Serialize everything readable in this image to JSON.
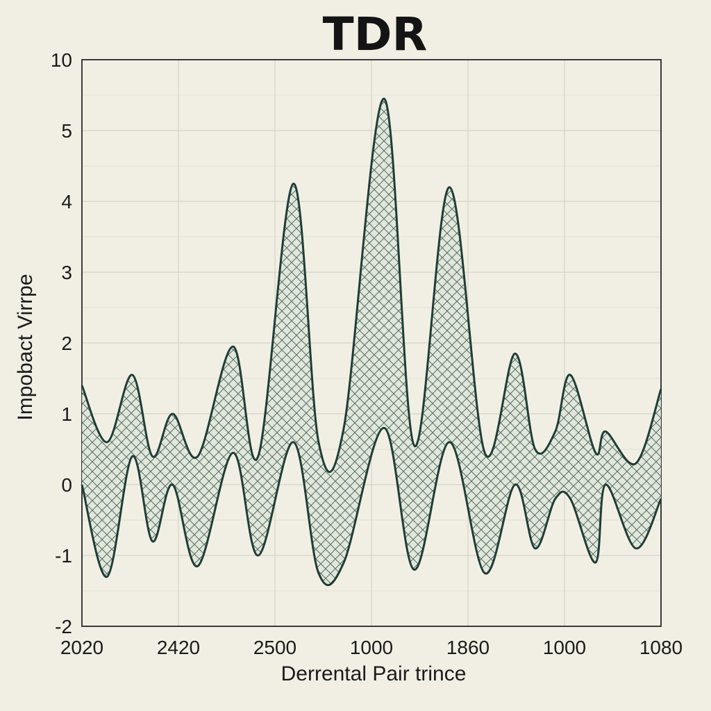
{
  "chart_data": {
    "type": "area",
    "title": "TDR",
    "xlabel": "Derrental Pair trince",
    "ylabel": "Impobact Virrpe",
    "y_ticks": [
      "10",
      "5",
      "4",
      "3",
      "2",
      "1",
      "0",
      "-1",
      "-2"
    ],
    "x_ticks": [
      "2020",
      "2420",
      "2500",
      "1000",
      "1860",
      "1000",
      "1080"
    ],
    "grid": true,
    "legend": "none",
    "colors": {
      "stroke": "#1f3d36",
      "fill": "#dfe5d9",
      "hatch": "#2c4a43",
      "grid": "#d6d3c6",
      "frame": "#3a3a3a"
    },
    "series": [
      {
        "upper": [
          [
            0.0,
            1.4
          ],
          [
            0.05,
            0.6
          ],
          [
            0.1,
            1.55
          ],
          [
            0.14,
            0.4
          ],
          [
            0.18,
            1.0
          ],
          [
            0.23,
            0.4
          ],
          [
            0.3,
            1.95
          ],
          [
            0.35,
            0.4
          ],
          [
            0.42,
            4.25
          ],
          [
            0.47,
            0.6
          ],
          [
            0.52,
            0.8
          ],
          [
            0.6,
            5.45
          ],
          [
            0.66,
            0.55
          ],
          [
            0.73,
            4.2
          ],
          [
            0.8,
            0.45
          ],
          [
            0.86,
            1.85
          ],
          [
            0.9,
            0.5
          ],
          [
            0.94,
            0.75
          ],
          [
            0.97,
            1.55
          ],
          [
            1.02,
            0.45
          ],
          [
            1.04,
            0.75
          ],
          [
            1.1,
            0.3
          ],
          [
            1.15,
            1.35
          ]
        ],
        "lower": [
          [
            0.0,
            0.0
          ],
          [
            0.05,
            -1.3
          ],
          [
            0.1,
            0.4
          ],
          [
            0.14,
            -0.8
          ],
          [
            0.18,
            0.0
          ],
          [
            0.23,
            -1.15
          ],
          [
            0.3,
            0.45
          ],
          [
            0.35,
            -1.0
          ],
          [
            0.42,
            0.6
          ],
          [
            0.47,
            -1.25
          ],
          [
            0.52,
            -1.1
          ],
          [
            0.6,
            0.8
          ],
          [
            0.66,
            -1.2
          ],
          [
            0.73,
            0.6
          ],
          [
            0.8,
            -1.25
          ],
          [
            0.86,
            0.0
          ],
          [
            0.9,
            -0.9
          ],
          [
            0.94,
            -0.2
          ],
          [
            0.97,
            -0.2
          ],
          [
            1.02,
            -1.1
          ],
          [
            1.04,
            0.0
          ],
          [
            1.1,
            -0.9
          ],
          [
            1.15,
            -0.2
          ]
        ]
      }
    ]
  }
}
